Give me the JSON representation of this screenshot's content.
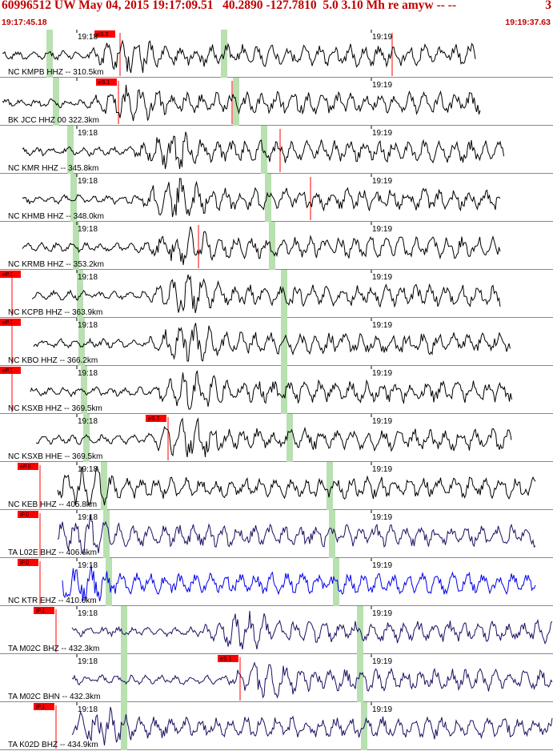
{
  "header": {
    "title": "60996512 UW May 04, 2015 19:17:09.51   40.2890 -127.7810  5.0 3.10 Mh re amyw -- --",
    "title_suffix": "3",
    "time_start": "19:17:45.18",
    "time_end": "19:19:37.63"
  },
  "colors": {
    "title": "#c00000",
    "pick_box": "#ff0000",
    "marker_band": "#b8e0b0",
    "trace_default": "#000000",
    "trace_blue": "#0000ee",
    "trace_navy": "#1a1060"
  },
  "traces": [
    {
      "label": "NC KMPB HHZ -- 310.5km",
      "ticks": [
        "19:18",
        "19:19"
      ],
      "pick": "eS.2",
      "color": "#000000"
    },
    {
      "label": "BK JCC HHZ 00 322.3km",
      "ticks": [
        "",
        "19:19"
      ],
      "pick": "eS.1",
      "color": "#000000"
    },
    {
      "label": "NC KMR HHZ -- 345.8km",
      "ticks": [
        "19:18",
        "19:19"
      ],
      "pick": "",
      "color": "#000000"
    },
    {
      "label": "NC KHMB HHZ -- 348.0km",
      "ticks": [
        "19:18",
        "19:19"
      ],
      "pick": "",
      "color": "#000000"
    },
    {
      "label": "NC KRMB HHZ -- 353.2km",
      "ticks": [
        "19:18",
        "19:19"
      ],
      "pick": "",
      "color": "#000000"
    },
    {
      "label": "NC KCPB HHZ -- 363.9km",
      "ticks": [
        "19:18",
        "19:19"
      ],
      "pick": "eP.1",
      "color": "#000000"
    },
    {
      "label": "NC KBO HHZ -- 366.2km",
      "ticks": [
        "19:18",
        "19:19"
      ],
      "pick": "eP.1",
      "color": "#000000"
    },
    {
      "label": "NC KSXB HHZ -- 369.5km",
      "ticks": [
        "19:18",
        "19:19"
      ],
      "pick": "eP.1",
      "color": "#000000"
    },
    {
      "label": "NC KSXB HHE -- 369.5km",
      "ticks": [
        "19:18",
        "19:19"
      ],
      "pick": "eS.2",
      "color": "#000000"
    },
    {
      "label": "NC KEB HHZ -- 405.8km",
      "ticks": [
        "19:18",
        "19:19"
      ],
      "pick": "eP.0",
      "color": "#000000"
    },
    {
      "label": "TA L02E BHZ -- 406.6km",
      "ticks": [
        "19:18",
        "19:19"
      ],
      "pick": "iP.0",
      "color": "#1a1060"
    },
    {
      "label": "NC KTR EHZ -- 410.6km",
      "ticks": [
        "19:18",
        "19:19"
      ],
      "pick": "iP.0",
      "color": "#0000ee"
    },
    {
      "label": "TA M02C BHZ -- 432.3km",
      "ticks": [
        "19:18",
        "19:19"
      ],
      "pick": "iP.1",
      "color": "#1a1060"
    },
    {
      "label": "TA M02C BHN -- 432.3km",
      "ticks": [
        "19:18",
        "19:19"
      ],
      "pick": "eS.1",
      "color": "#1a1060"
    },
    {
      "label": "TA K02D BHZ -- 434.9km",
      "ticks": [
        "19:18",
        "19:19"
      ],
      "pick": "iP.1",
      "color": "#1a1060"
    }
  ]
}
